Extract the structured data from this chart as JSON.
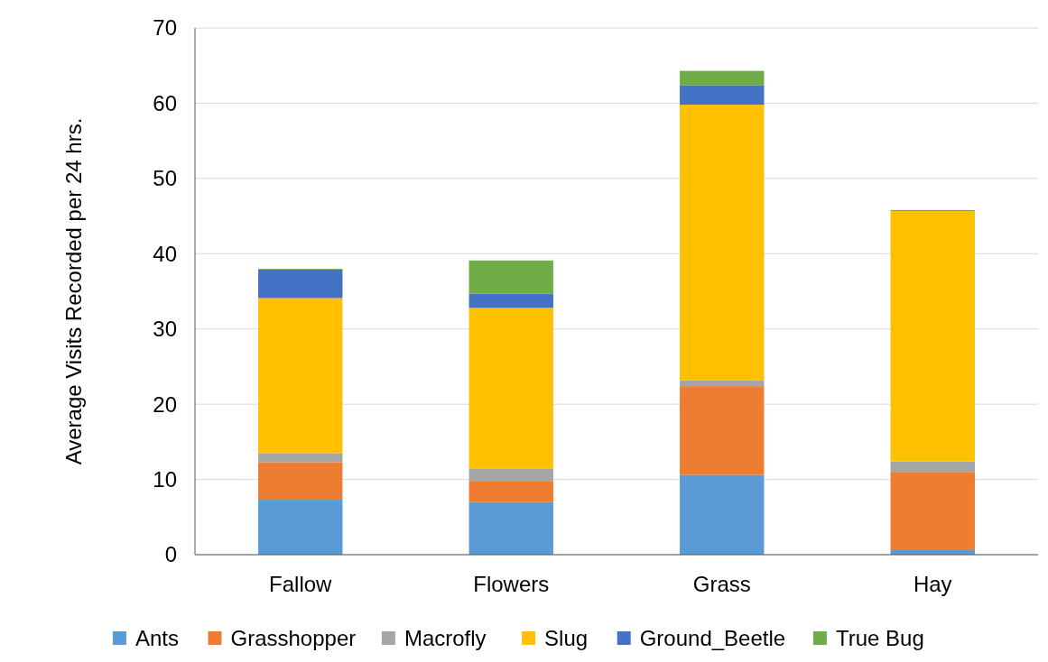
{
  "chart_data": {
    "type": "bar",
    "stacked": true,
    "ylabel": "Average Visits Recorded per 24 hrs.",
    "categories": [
      "Fallow",
      "Flowers",
      "Grass",
      "Hay"
    ],
    "series": [
      {
        "name": "Ants",
        "color": "#5b9bd5",
        "values": [
          7.3,
          7.0,
          10.6,
          0.6
        ]
      },
      {
        "name": "Grasshopper",
        "color": "#ed7d31",
        "values": [
          5.0,
          2.8,
          11.8,
          10.4
        ]
      },
      {
        "name": "Macrofly",
        "color": "#a5a5a5",
        "values": [
          1.2,
          1.6,
          0.8,
          1.4
        ]
      },
      {
        "name": "Slug",
        "color": "#ffc000",
        "values": [
          20.6,
          21.4,
          36.6,
          33.3
        ]
      },
      {
        "name": "Ground_Beetle",
        "color": "#4472c4",
        "values": [
          3.8,
          1.9,
          2.6,
          0.1
        ]
      },
      {
        "name": "True Bug",
        "color": "#70ad47",
        "values": [
          0.1,
          4.4,
          1.9,
          0
        ]
      }
    ],
    "ylim": [
      0,
      70
    ],
    "yticks": [
      0,
      10,
      20,
      30,
      40,
      50,
      60,
      70
    ],
    "grid": "y",
    "legend": "bottom"
  }
}
